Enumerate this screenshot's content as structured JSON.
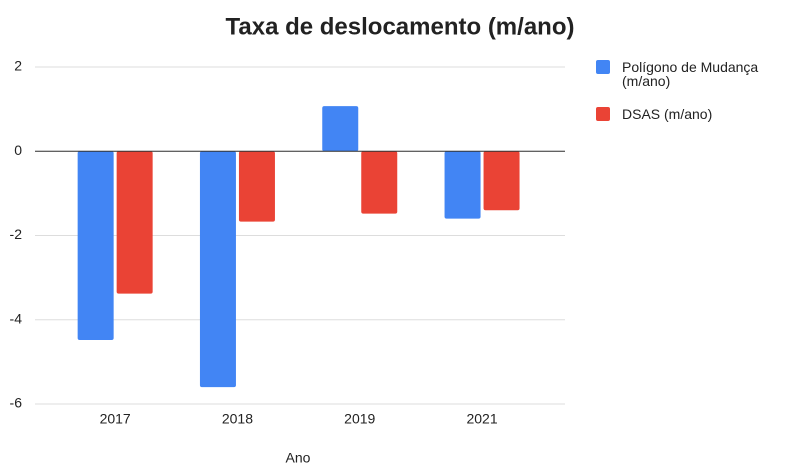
{
  "chart_data": {
    "type": "bar",
    "title": "Taxa de deslocamento (m/ano)",
    "x_label": "Ano",
    "categories": [
      "2017",
      "2018",
      "2019",
      "2021"
    ],
    "series": [
      {
        "name": "Polígono de Mudança (m/ano)",
        "color": "#4285f4",
        "values": [
          -4.48,
          -5.6,
          1.07,
          -1.6
        ]
      },
      {
        "name": "DSAS (m/ano)",
        "color": "#ea4335",
        "values": [
          -3.38,
          -1.67,
          -1.48,
          -1.4
        ]
      }
    ],
    "ylim": [
      -6,
      2
    ],
    "yticks": [
      -6,
      -4,
      -2,
      0,
      2
    ],
    "grid": true,
    "legend": "right"
  }
}
